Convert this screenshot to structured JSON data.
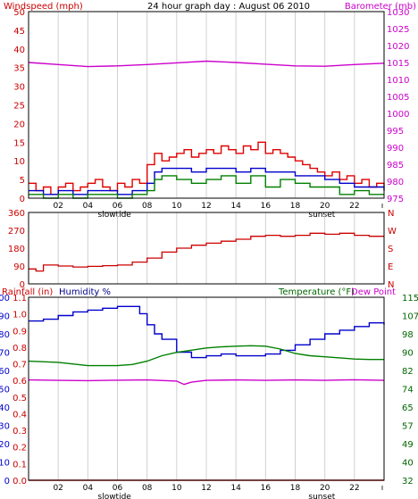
{
  "colors": {
    "wind": "#e00000",
    "gust_band": "#ff0000",
    "wind_avg": "#0000cc",
    "wind_green": "#008000",
    "barometer": "#cc00cc",
    "direction": "#cc0000",
    "humidity": "#0000cc",
    "temperature": "#008000",
    "dewpoint": "#cc00cc",
    "rainfall": "#cc0000",
    "grid": "#d0d0d0",
    "panel_border": "#000000"
  },
  "chart_data": [
    {
      "type": "line",
      "title": "24 hour graph day : August 06 2010",
      "ylabel_left": "Windspeed (mph)",
      "ylabel_right": "Barometer (mb)",
      "x_tick_labels": [
        "02",
        "04",
        "06",
        "08",
        "10",
        "12",
        "14",
        "16",
        "18",
        "20",
        "22"
      ],
      "x_annotations": [
        "slowtide",
        "sunset"
      ],
      "ylim_left": [
        0,
        50
      ],
      "yticks_left": [
        0,
        5,
        10,
        15,
        20,
        25,
        30,
        35,
        40,
        45,
        50
      ],
      "ylim_right": [
        975,
        1030
      ],
      "yticks_right": [
        975,
        980,
        985,
        990,
        995,
        1000,
        1005,
        1010,
        1015,
        1020,
        1025,
        1030
      ],
      "x_range_hours": [
        0,
        24
      ],
      "grid": true,
      "series": [
        {
          "name": "",
          "axis": "left",
          "color_key": "wind",
          "step": true,
          "x": [
            0,
            0.5,
            1,
            1.5,
            2,
            2.5,
            3,
            3.5,
            4,
            4.5,
            5,
            5.5,
            6,
            6.5,
            7,
            7.5,
            8,
            8.5,
            9,
            9.5,
            10,
            10.5,
            11,
            11.5,
            12,
            12.5,
            13,
            13.5,
            14,
            14.5,
            15,
            15.5,
            16,
            16.5,
            17,
            17.5,
            18,
            18.5,
            19,
            19.5,
            20,
            20.5,
            21,
            21.5,
            22,
            22.5,
            23,
            23.5,
            24
          ],
          "y": [
            4,
            2,
            3,
            1,
            3,
            4,
            2,
            3,
            4,
            5,
            3,
            2,
            4,
            3,
            5,
            4,
            9,
            12,
            10,
            11,
            12,
            13,
            11,
            12,
            13,
            12,
            14,
            13,
            12,
            14,
            13,
            15,
            12,
            13,
            12,
            11,
            10,
            9,
            8,
            7,
            6,
            7,
            5,
            6,
            4,
            5,
            3,
            4,
            3
          ]
        },
        {
          "name": "",
          "axis": "left",
          "color_key": "wind_avg",
          "step": true,
          "x": [
            0,
            1,
            2,
            3,
            4,
            5,
            6,
            7,
            8,
            8.5,
            9,
            10,
            11,
            12,
            13,
            14,
            15,
            16,
            17,
            18,
            19,
            20,
            21,
            22,
            23,
            24
          ],
          "y": [
            2,
            1,
            2,
            1,
            2,
            2,
            1,
            2,
            4,
            7,
            8,
            8,
            7,
            8,
            8,
            7,
            8,
            7,
            7,
            6,
            6,
            5,
            4,
            3,
            3,
            2
          ]
        },
        {
          "name": "",
          "axis": "left",
          "color_key": "wind_green",
          "step": true,
          "x": [
            0,
            1,
            2,
            3,
            4,
            5,
            6,
            7,
            8,
            8.5,
            9,
            10,
            11,
            12,
            13,
            14,
            15,
            16,
            17,
            18,
            19,
            20,
            21,
            22,
            23,
            24
          ],
          "y": [
            1,
            0,
            1,
            0,
            1,
            1,
            0,
            1,
            2,
            5,
            6,
            5,
            4,
            5,
            6,
            4,
            6,
            3,
            5,
            4,
            3,
            3,
            1,
            2,
            1,
            1
          ]
        },
        {
          "name": "",
          "axis": "right",
          "color_key": "barometer",
          "step": false,
          "x": [
            0,
            2,
            4,
            6,
            8,
            10,
            12,
            14,
            16,
            18,
            20,
            22,
            24
          ],
          "y": [
            1015,
            1014.4,
            1013.8,
            1014,
            1014.4,
            1014.9,
            1015.4,
            1015,
            1014.5,
            1014,
            1013.9,
            1014.4,
            1014.8
          ]
        }
      ]
    },
    {
      "type": "scatter",
      "ylabel_left_ticks": [
        "360",
        "270",
        "180",
        "90",
        "0"
      ],
      "ylabel_right_ticks": [
        "N",
        "W",
        "S",
        "E",
        "N"
      ],
      "ylim": [
        0,
        360
      ],
      "x_range_hours": [
        0,
        24
      ],
      "grid": true,
      "series": [
        {
          "name": "",
          "color_key": "direction",
          "step": true,
          "x": [
            0,
            0.5,
            1,
            2,
            3,
            4,
            5,
            6,
            7,
            8,
            9,
            10,
            11,
            12,
            13,
            14,
            15,
            16,
            17,
            18,
            19,
            20,
            21,
            22,
            23,
            24
          ],
          "y": [
            75,
            65,
            95,
            90,
            85,
            88,
            92,
            95,
            110,
            130,
            160,
            180,
            195,
            205,
            215,
            225,
            240,
            245,
            240,
            245,
            255,
            250,
            255,
            245,
            240,
            240
          ]
        }
      ]
    },
    {
      "type": "line",
      "ylabel_left_a": "Rainfall (in)",
      "ylabel_left_b": "Humidity %",
      "ylabel_right_a": "Temperature (°F)",
      "ylabel_right_b": "Dew Point",
      "yticks_humidity": [
        0,
        10,
        20,
        30,
        40,
        50,
        60,
        70,
        80,
        90,
        100
      ],
      "yticks_rain": [
        "0.0",
        "0.1",
        "0.2",
        "0.3",
        "0.4",
        "0.5",
        "0.6",
        "0.7",
        "0.8",
        "0.9",
        "1.0",
        "1.1"
      ],
      "yticks_temp": [
        "32",
        "40",
        "49",
        "57",
        "65",
        "74",
        "82",
        "90",
        "98",
        "107",
        "115"
      ],
      "x_tick_labels": [
        "02",
        "04",
        "06",
        "08",
        "10",
        "12",
        "14",
        "16",
        "18",
        "20",
        "22"
      ],
      "x_annotations": [
        "slowtide",
        "sunset"
      ],
      "ylim_humidity": [
        0,
        100
      ],
      "ylim_temp": [
        32,
        115
      ],
      "x_range_hours": [
        0,
        24
      ],
      "grid": true,
      "series": [
        {
          "name": "",
          "axis": "humidity",
          "color_key": "humidity",
          "step": true,
          "x": [
            0,
            1,
            2,
            3,
            4,
            5,
            6,
            7,
            7.5,
            8,
            8.5,
            9,
            10,
            11,
            12,
            13,
            14,
            15,
            16,
            17,
            18,
            19,
            20,
            21,
            22,
            23,
            24
          ],
          "y": [
            87,
            88,
            90,
            92,
            93,
            94,
            95,
            95,
            91,
            85,
            80,
            77,
            70,
            67,
            68,
            69,
            68,
            68,
            69,
            71,
            74,
            77,
            80,
            82,
            84,
            86,
            85
          ]
        },
        {
          "name": "",
          "axis": "temperature",
          "color_key": "temperature",
          "step": false,
          "x": [
            0,
            2,
            4,
            6,
            7,
            8,
            9,
            10,
            11,
            12,
            13,
            14,
            15,
            16,
            17,
            18,
            19,
            20,
            21,
            22,
            23,
            24
          ],
          "y": [
            86,
            85.5,
            84,
            84,
            84.5,
            86,
            88.5,
            90,
            91,
            92,
            92.5,
            92.8,
            93,
            92.8,
            91.5,
            89.5,
            88.5,
            88,
            87.5,
            87,
            86.8,
            86.8
          ]
        },
        {
          "name": "",
          "axis": "temperature",
          "color_key": "dewpoint",
          "step": false,
          "x": [
            0,
            2,
            4,
            6,
            8,
            10,
            10.5,
            11,
            12,
            14,
            16,
            18,
            20,
            22,
            24
          ],
          "y": [
            77.5,
            77.3,
            77.2,
            77.4,
            77.5,
            77,
            75.5,
            76.5,
            77.3,
            77.5,
            77.3,
            77.5,
            77.3,
            77.6,
            77.3
          ]
        },
        {
          "name": "",
          "axis": "humidity",
          "color_key": "rainfall",
          "step": false,
          "x": [
            0,
            24
          ],
          "y": [
            0,
            0
          ]
        }
      ]
    }
  ]
}
